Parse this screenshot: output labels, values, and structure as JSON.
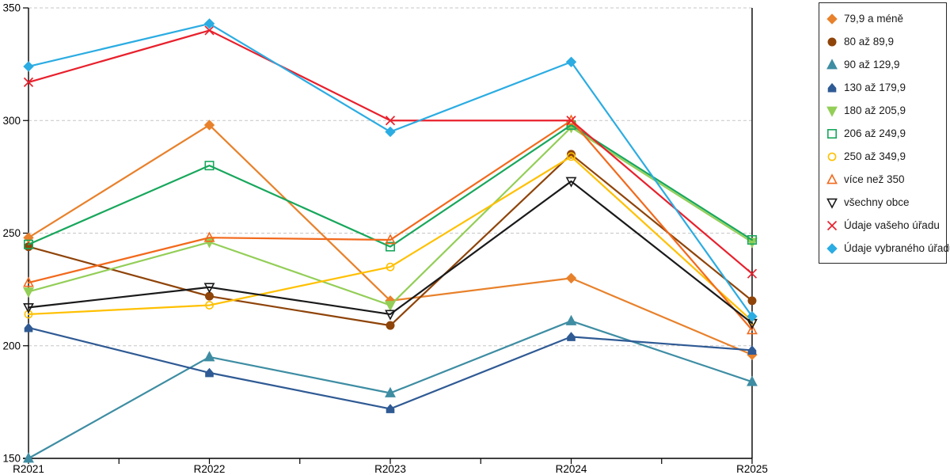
{
  "chart_data": {
    "type": "line",
    "title": "",
    "categories": [
      "R2021",
      "R2022",
      "R2023",
      "R2024",
      "R2025"
    ],
    "y_axis": {
      "min": 150,
      "max": 350,
      "tick_step": 50,
      "tick_labels": [
        "150",
        "200",
        "250",
        "300",
        "350"
      ]
    },
    "grid": "horizontal-dashed",
    "legend_position": "right",
    "series": [
      {
        "name": "79,9 a méně",
        "color": "#E8812B",
        "marker": "diamond",
        "fill": "solid",
        "values": [
          248,
          298,
          220,
          230,
          196
        ]
      },
      {
        "name": "80 až 89,9",
        "color": "#8F4409",
        "marker": "circle",
        "fill": "solid",
        "values": [
          244,
          222,
          209,
          285,
          220
        ]
      },
      {
        "name": "90 až 129,9",
        "color": "#3E8DA3",
        "marker": "triangle-up",
        "fill": "solid",
        "values": [
          150,
          195,
          179,
          211,
          184
        ]
      },
      {
        "name": "130 až 179,9",
        "color": "#2F5A94",
        "marker": "pentagon",
        "fill": "solid",
        "values": [
          208,
          188,
          172,
          204,
          198
        ]
      },
      {
        "name": "180 až 205,9",
        "color": "#93CE57",
        "marker": "triangle-down",
        "fill": "solid",
        "values": [
          224,
          246,
          218,
          297,
          246
        ]
      },
      {
        "name": "206 až 249,9",
        "color": "#18A75C",
        "marker": "square",
        "fill": "open",
        "values": [
          245,
          280,
          244,
          298,
          247
        ]
      },
      {
        "name": "250 až 349,9",
        "color": "#FFC000",
        "marker": "circle",
        "fill": "open",
        "values": [
          214,
          218,
          235,
          284,
          211
        ]
      },
      {
        "name": "více než 350",
        "color": "#F2691C",
        "marker": "triangle-up",
        "fill": "open",
        "values": [
          228,
          248,
          247,
          300,
          207
        ]
      },
      {
        "name": "všechny obce",
        "color": "#1A1A1A",
        "marker": "triangle-down",
        "fill": "open",
        "values": [
          217,
          226,
          214,
          273,
          210
        ]
      },
      {
        "name": "Údaje vašeho úřadu",
        "color": "#E8202C",
        "marker": "x",
        "fill": "open",
        "values": [
          317,
          340,
          300,
          300,
          232
        ]
      },
      {
        "name": "Údaje vybraného úřadu",
        "color": "#2BACE2",
        "marker": "diamond",
        "fill": "solid",
        "values": [
          324,
          343,
          295,
          326,
          213
        ]
      }
    ]
  },
  "colors": {
    "gridline": "#C6C6C6",
    "axis": "#000000",
    "legend_border": "#262626",
    "text": "#000000",
    "background": "#FFFFFF"
  }
}
